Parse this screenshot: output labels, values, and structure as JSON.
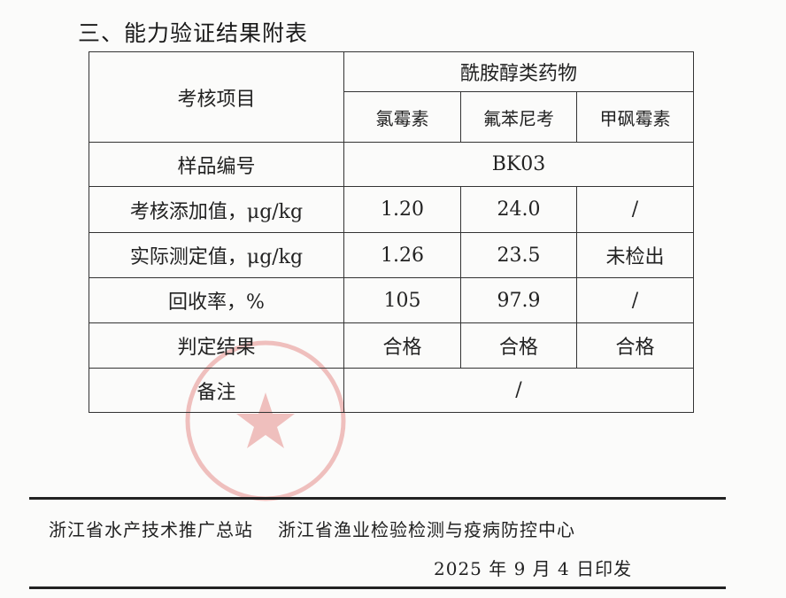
{
  "section_title": "三、能力验证结果附表",
  "table": {
    "item_header": "考核项目",
    "group_header": "酰胺醇类药物",
    "drugs": [
      "氯霉素",
      "氟苯尼考",
      "甲砜霉素"
    ],
    "sample_label": "样品编号",
    "sample_id": "BK03",
    "rows": [
      {
        "label": "考核添加值，μg/kg",
        "values": [
          "1.20",
          "24.0",
          "/"
        ]
      },
      {
        "label": "实际测定值，μg/kg",
        "values": [
          "1.26",
          "23.5",
          "未检出"
        ]
      },
      {
        "label": "回收率，%",
        "values": [
          "105",
          "97.9",
          "/"
        ]
      },
      {
        "label": "判定结果",
        "values": [
          "合格",
          "合格",
          "合格"
        ]
      }
    ],
    "remark_label": "备注",
    "remark_value": "/"
  },
  "footer": {
    "issuer_1": "浙江省水产技术推广总站",
    "issuer_2": "浙江省渔业检验检测与疫病防控中心",
    "date": "2025 年 9 月 4 日印发"
  },
  "stamp_color": "#d9534f"
}
